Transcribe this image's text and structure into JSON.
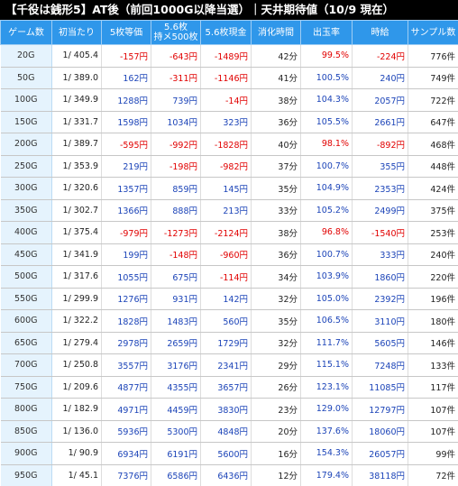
{
  "title": "【千役は銭形5】AT後（前回1000G以降当選）｜天井期待値（10/9 現在）",
  "headers": [
    "ゲーム数",
    "初当たり",
    "5枚等価",
    "5.6枚\n持メ500枚",
    "5.6枚現金",
    "消化時間",
    "出玉率",
    "時給",
    "サンプル数"
  ],
  "colors": {
    "header_bg": "#2f97ea",
    "first_col_bg": "#e5f3fd",
    "negative": "#e10000",
    "positive": "#1c44b8"
  },
  "rows": [
    [
      "20G",
      "1/ 405.4",
      "-157円",
      "-643円",
      "-1489円",
      "42分",
      "99.5%",
      "-224円",
      "776件"
    ],
    [
      "50G",
      "1/ 389.0",
      "162円",
      "-311円",
      "-1146円",
      "41分",
      "100.5%",
      "240円",
      "749件"
    ],
    [
      "100G",
      "1/ 349.9",
      "1288円",
      "739円",
      "-14円",
      "38分",
      "104.3%",
      "2057円",
      "722件"
    ],
    [
      "150G",
      "1/ 331.7",
      "1598円",
      "1034円",
      "323円",
      "36分",
      "105.5%",
      "2661円",
      "647件"
    ],
    [
      "200G",
      "1/ 389.7",
      "-595円",
      "-992円",
      "-1828円",
      "40分",
      "98.1%",
      "-892円",
      "468件"
    ],
    [
      "250G",
      "1/ 353.9",
      "219円",
      "-198円",
      "-982円",
      "37分",
      "100.7%",
      "355円",
      "448件"
    ],
    [
      "300G",
      "1/ 320.6",
      "1357円",
      "859円",
      "145円",
      "35分",
      "104.9%",
      "2353円",
      "424件"
    ],
    [
      "350G",
      "1/ 302.7",
      "1366円",
      "888円",
      "213円",
      "33分",
      "105.2%",
      "2499円",
      "375件"
    ],
    [
      "400G",
      "1/ 375.4",
      "-979円",
      "-1273円",
      "-2124円",
      "38分",
      "96.8%",
      "-1540円",
      "253件"
    ],
    [
      "450G",
      "1/ 341.9",
      "199円",
      "-148円",
      "-960円",
      "36分",
      "100.7%",
      "333円",
      "240件"
    ],
    [
      "500G",
      "1/ 317.6",
      "1055円",
      "675円",
      "-114円",
      "34分",
      "103.9%",
      "1860円",
      "220件"
    ],
    [
      "550G",
      "1/ 299.9",
      "1276円",
      "931円",
      "142円",
      "32分",
      "105.0%",
      "2392円",
      "196件"
    ],
    [
      "600G",
      "1/ 322.2",
      "1828円",
      "1483円",
      "560円",
      "35分",
      "106.5%",
      "3110円",
      "180件"
    ],
    [
      "650G",
      "1/ 279.4",
      "2978円",
      "2659円",
      "1729円",
      "32分",
      "111.7%",
      "5605円",
      "146件"
    ],
    [
      "700G",
      "1/ 250.8",
      "3557円",
      "3176円",
      "2341円",
      "29分",
      "115.1%",
      "7248円",
      "133件"
    ],
    [
      "750G",
      "1/ 209.6",
      "4877円",
      "4355円",
      "3657円",
      "26分",
      "123.1%",
      "11085円",
      "117件"
    ],
    [
      "800G",
      "1/ 182.9",
      "4971円",
      "4459円",
      "3830円",
      "23分",
      "129.0%",
      "12797円",
      "107件"
    ],
    [
      "850G",
      "1/ 136.0",
      "5936円",
      "5300円",
      "4848円",
      "20分",
      "137.6%",
      "18060円",
      "107件"
    ],
    [
      "900G",
      "1/ 90.9",
      "6934円",
      "6191円",
      "5600円",
      "16分",
      "154.3%",
      "26057円",
      "99件"
    ],
    [
      "950G",
      "1/ 45.1",
      "7376円",
      "6586円",
      "6436円",
      "12分",
      "179.4%",
      "38118円",
      "72件"
    ]
  ]
}
